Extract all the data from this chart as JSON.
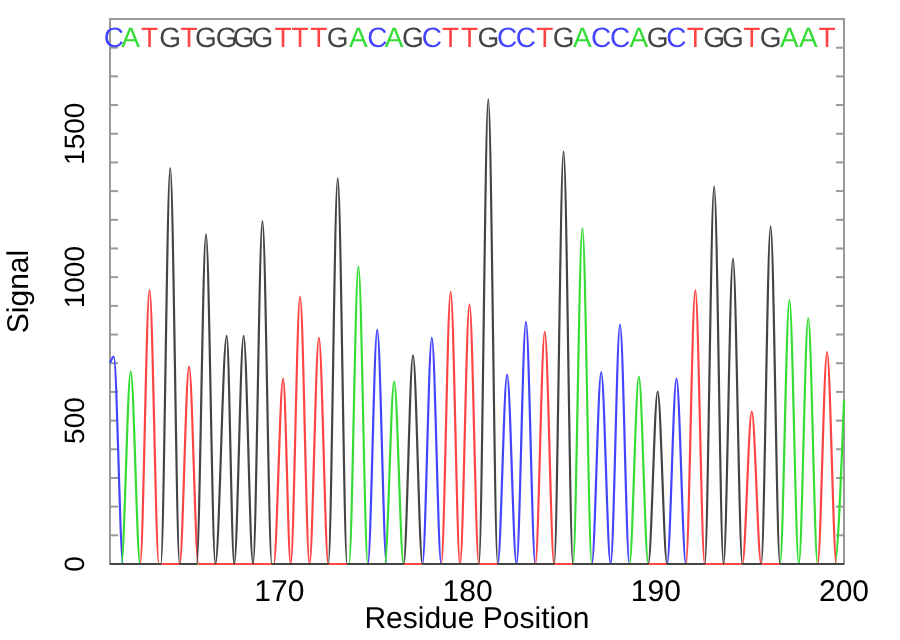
{
  "chart_data": {
    "type": "line",
    "xlabel": "Residue Position",
    "ylabel": "Signal",
    "xlim": [
      161,
      200
    ],
    "xticks": [
      170,
      180,
      190,
      200
    ],
    "ylim": [
      0,
      1900
    ],
    "yticks": [
      0,
      {
        "value": 100,
        "label": null
      },
      {
        "value": 200,
        "label": null
      },
      {
        "value": 300,
        "label": null
      },
      {
        "value": 400,
        "label": null
      },
      500,
      {
        "value": 600,
        "label": null
      },
      {
        "value": 700,
        "label": null
      },
      {
        "value": 800,
        "label": null
      },
      {
        "value": 900,
        "label": null
      },
      1000,
      {
        "value": 1100,
        "label": null
      },
      {
        "value": 1200,
        "label": null
      },
      {
        "value": 1300,
        "label": null
      },
      {
        "value": 1400,
        "label": null
      },
      1500,
      {
        "value": 1600,
        "label": null
      },
      {
        "value": 1700,
        "label": null
      },
      {
        "value": 1800,
        "label": null
      }
    ],
    "grid": false,
    "marker": "none",
    "line_style": "solid",
    "series": [
      {
        "color": "#4444ff",
        "x": [
          161,
          161.2,
          161.7,
          174.7,
          175.2,
          175.7,
          177.6,
          178.1,
          178.6,
          181.6,
          182.1,
          182.6,
          183.1,
          183.6,
          186.6,
          187.1,
          187.6,
          188.1,
          188.6,
          190.6,
          191.1,
          191.6,
          200
        ],
        "values": [
          700,
          723,
          0,
          0,
          816,
          0,
          0,
          788,
          0,
          0,
          660,
          0,
          844,
          0,
          0,
          669,
          0,
          835,
          0,
          0,
          646,
          0,
          0
        ]
      },
      {
        "color": "#33dd33",
        "x": [
          161,
          161.6,
          162.1,
          162.6,
          173.7,
          174.2,
          174.7,
          175.6,
          176.1,
          176.6,
          185.6,
          186.1,
          186.6,
          188.6,
          189.1,
          189.6,
          196.6,
          197.1,
          197.6,
          198.1,
          198.6,
          199.5,
          200
        ],
        "values": [
          0,
          0,
          671,
          0,
          0,
          1037,
          0,
          0,
          636,
          0,
          0,
          1170,
          0,
          0,
          653,
          0,
          0,
          921,
          0,
          856,
          0,
          0,
          570
        ]
      },
      {
        "color": "#ff4444",
        "x": [
          161,
          162.6,
          163.1,
          163.6,
          164.7,
          165.2,
          165.7,
          169.7,
          170.2,
          170.6,
          171.1,
          171.6,
          172.1,
          172.6,
          178.6,
          179.1,
          179.6,
          180.1,
          180.6,
          183.6,
          184.1,
          184.6,
          191.6,
          192.1,
          192.6,
          194.6,
          195.1,
          195.6,
          198.6,
          199.1,
          199.6,
          200
        ],
        "values": [
          0,
          0,
          955,
          0,
          0,
          688,
          0,
          0,
          646,
          0,
          932,
          0,
          788,
          0,
          0,
          949,
          0,
          905,
          0,
          0,
          809,
          0,
          0,
          955,
          0,
          0,
          531,
          0,
          0,
          739,
          0,
          0
        ]
      },
      {
        "color": "#444444",
        "x": [
          161,
          163.7,
          164.2,
          164.7,
          165.6,
          166.1,
          166.6,
          167.2,
          167.6,
          168.1,
          168.6,
          169.1,
          169.6,
          172.6,
          173.1,
          173.6,
          176.6,
          177.1,
          177.6,
          180.6,
          181.1,
          181.6,
          184.6,
          185.1,
          185.6,
          189.6,
          190.1,
          190.6,
          192.6,
          193.1,
          193.6,
          194.1,
          194.6,
          195.6,
          196.1,
          196.6,
          200
        ],
        "values": [
          0,
          0,
          1380,
          0,
          0,
          1149,
          0,
          795,
          0,
          795,
          0,
          1195,
          0,
          0,
          1345,
          0,
          0,
          727,
          0,
          0,
          1620,
          0,
          0,
          1438,
          0,
          0,
          601,
          0,
          0,
          1317,
          0,
          1065,
          0,
          0,
          1177,
          0,
          0
        ]
      }
    ],
    "annotations": [
      "C",
      "A",
      "T",
      "G",
      "T",
      "G",
      "G",
      "G",
      "G",
      "T",
      "T",
      "T",
      "G",
      "A",
      "C",
      "A",
      "G",
      "C",
      "T",
      "T",
      "G",
      "C",
      "C",
      "T",
      "G",
      "A",
      "C",
      "C",
      "A",
      "G",
      "C",
      "T",
      "G",
      "G",
      "T",
      "G",
      "A",
      "A",
      "T"
    ]
  }
}
